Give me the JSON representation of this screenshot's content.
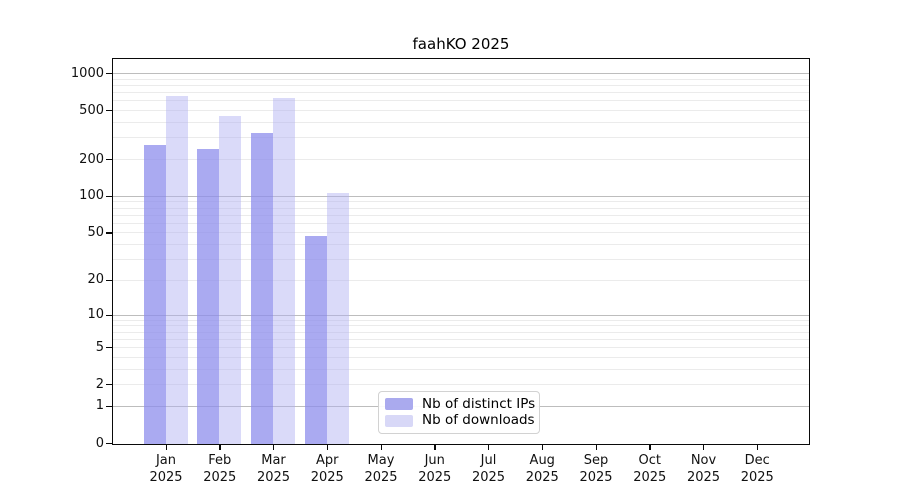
{
  "chart_data": {
    "type": "bar",
    "title": "faahKO 2025",
    "y_scale": "log10(1+x)",
    "ylim": [
      0,
      1280
    ],
    "grid": "horizontal",
    "legend_position": "bottom-center",
    "categories": [
      "Jan",
      "Feb",
      "Mar",
      "Apr",
      "May",
      "Jun",
      "Jul",
      "Aug",
      "Sep",
      "Oct",
      "Nov",
      "Dec"
    ],
    "category_year": "2025",
    "y_ticks": [
      0,
      1,
      2,
      5,
      10,
      20,
      50,
      100,
      200,
      500,
      1000
    ],
    "grid_major_values": [
      1,
      10,
      100,
      1000
    ],
    "grid_minor_values": [
      2,
      3,
      4,
      5,
      6,
      7,
      8,
      9,
      20,
      30,
      40,
      50,
      60,
      70,
      80,
      90,
      200,
      300,
      400,
      500,
      600,
      700,
      800,
      900
    ],
    "series": [
      {
        "name": "Nb of distinct IPs",
        "legend_color": "#aaaaee",
        "bar_fill": "rgba(141,141,236,0.75)",
        "values": [
          265,
          248,
          335,
          48,
          0,
          0,
          0,
          0,
          0,
          0,
          0,
          0
        ]
      },
      {
        "name": "Nb of downloads",
        "legend_color": "#d8d8f7",
        "bar_fill": "rgba(173,173,242,0.45)",
        "values": [
          670,
          455,
          640,
          107,
          0,
          0,
          0,
          0,
          0,
          0,
          0,
          0
        ]
      }
    ],
    "colors": {
      "grid_major": "#bdbdbd",
      "grid_minor": "#ebebeb",
      "axis": "#0a0a0a",
      "background": "#ffffff"
    }
  }
}
